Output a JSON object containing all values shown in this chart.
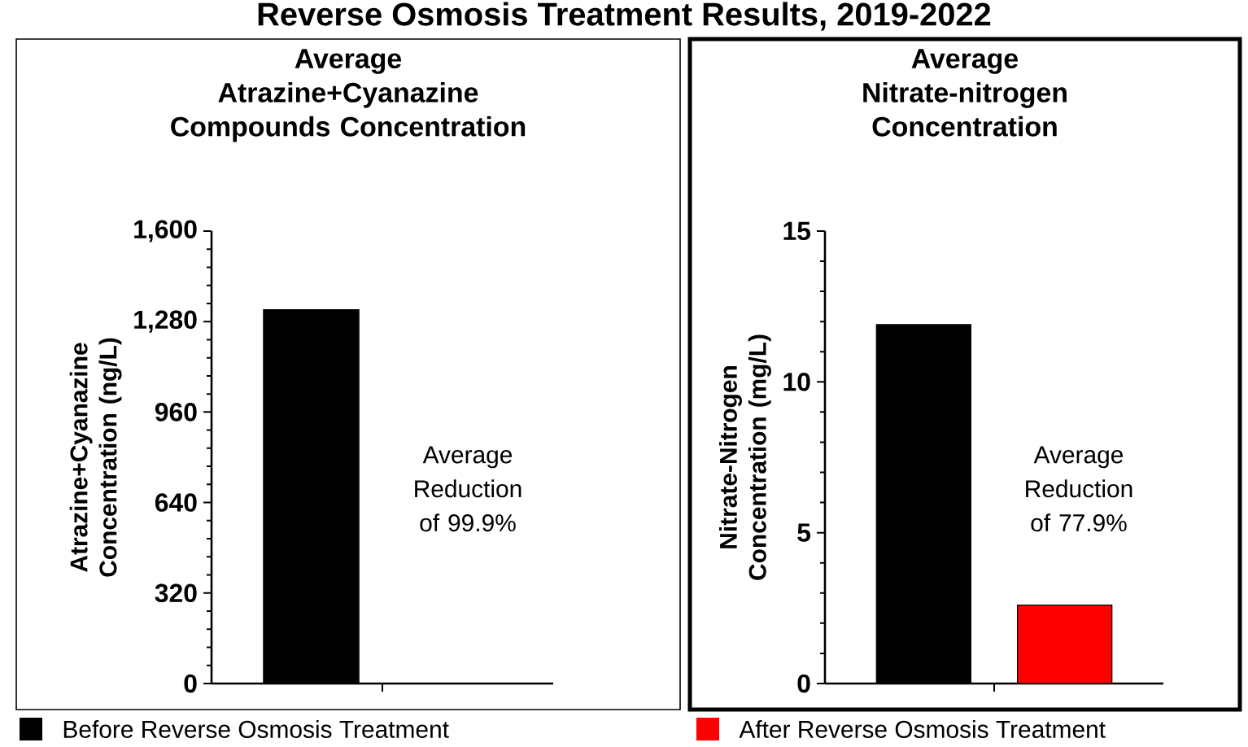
{
  "chart_data": [
    {
      "type": "bar",
      "title": "Average",
      "subtitle": "Atrazine+Cyanazine Compounds Concentration",
      "ylabel": "Atrazine+Cyanazine Concentration (ng/L)",
      "categories": [
        null,
        null
      ],
      "series": [
        {
          "name": "Before Reverse Osmosis Treatment",
          "color": "#000000",
          "values": [
            1322,
            null
          ]
        },
        {
          "name": "After Reverse Osmosis Treatment",
          "color": "#ff0000",
          "values": [
            null,
            1
          ]
        }
      ],
      "ylim": [
        0,
        1600
      ],
      "yticks": [
        {
          "value": 0,
          "label": "0"
        },
        {
          "value": 320,
          "label": "320"
        },
        {
          "value": 640,
          "label": "640"
        },
        {
          "value": 960,
          "label": "960"
        },
        {
          "value": 1280,
          "label": "1,280"
        },
        {
          "value": 1600,
          "label": "1,600"
        }
      ],
      "legend": "bottom",
      "annotations": [
        "Reverse Osmosis Treatment Results, 2019-2022",
        "Average Reduction of 99.9%"
      ]
    },
    {
      "type": "bar",
      "title": "Average",
      "subtitle": "Nitrate-nitrogen Concentration",
      "ylabel": "Nitrate-Nitrogen Concentration (mg/L)",
      "categories": [
        null,
        null
      ],
      "series": [
        {
          "color": "#000000",
          "values": [
            11.9,
            null
          ]
        },
        {
          "color": "#ff0000",
          "values": [
            null,
            2.6
          ]
        }
      ],
      "ylim": [
        0,
        15
      ],
      "yticks": [
        0,
        5,
        10,
        15
      ],
      "annotations": [
        "Average Reduction of 77.9%"
      ]
    }
  ]
}
